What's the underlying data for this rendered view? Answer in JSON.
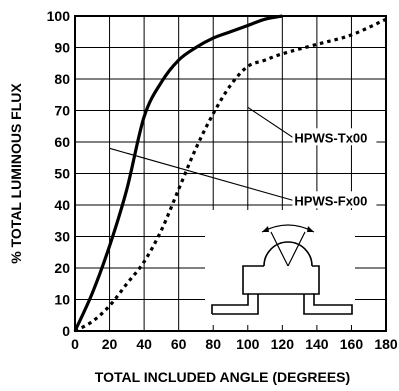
{
  "chart_data": {
    "type": "line",
    "title": "",
    "xlabel": "TOTAL INCLUDED ANGLE (DEGREES)",
    "ylabel": "% TOTAL LUMINOUS FLUX",
    "xlim": [
      0,
      180
    ],
    "ylim": [
      0,
      100
    ],
    "x_ticks": [
      "0",
      "20",
      "40",
      "60",
      "80",
      "100",
      "120",
      "140",
      "160",
      "180"
    ],
    "y_ticks": [
      "0",
      "10",
      "20",
      "30",
      "40",
      "50",
      "60",
      "70",
      "80",
      "90",
      "100"
    ],
    "grid": true,
    "series": [
      {
        "name": "HPWS-Tx00",
        "style": "solid",
        "x": [
          0,
          10,
          20,
          30,
          40,
          50,
          60,
          70,
          80,
          90,
          100,
          110,
          120
        ],
        "y": [
          0,
          12,
          27,
          45,
          68,
          79,
          86,
          90,
          93,
          95,
          97,
          99,
          100
        ]
      },
      {
        "name": "HPWS-Fx00",
        "style": "dotted",
        "x": [
          0,
          10,
          20,
          30,
          40,
          50,
          60,
          70,
          80,
          90,
          100,
          110,
          120,
          140,
          160,
          180
        ],
        "y": [
          0,
          3,
          8,
          15,
          22,
          32,
          45,
          58,
          69,
          78,
          84,
          86,
          88,
          91,
          94,
          99
        ]
      }
    ],
    "inset_icon": "led-package-viewing-angle-icon",
    "colors": {
      "line": "#000000",
      "background": "#ffffff"
    }
  }
}
